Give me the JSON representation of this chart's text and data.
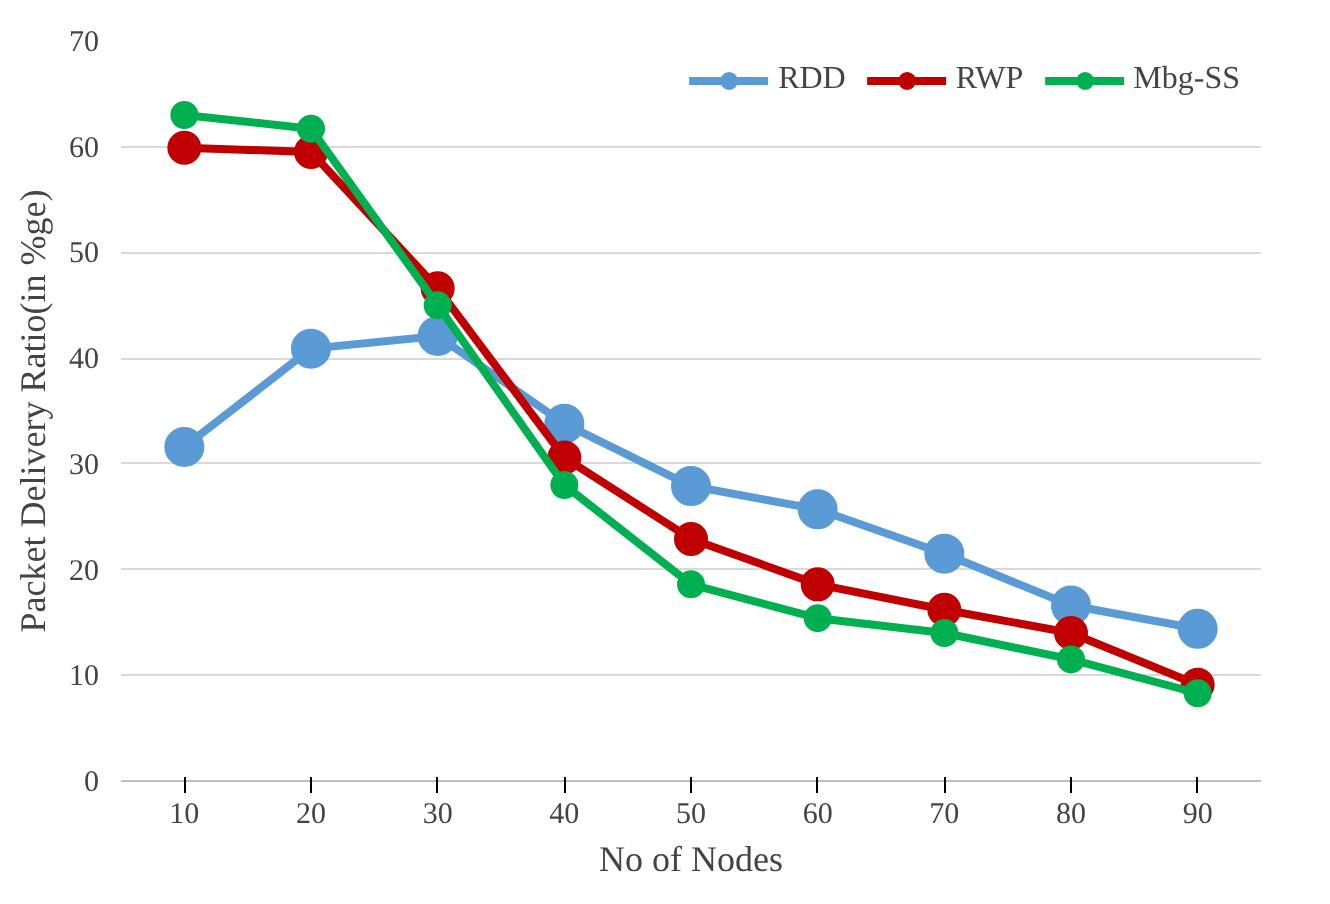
{
  "chart_data": {
    "type": "line",
    "xlabel": "No of Nodes",
    "ylabel": "Packet Delivery Ratio(in %ge)",
    "categories": [
      "10",
      "20",
      "30",
      "40",
      "50",
      "60",
      "70",
      "80",
      "90"
    ],
    "series": [
      {
        "name": "RDD",
        "color": "#5b9bd5",
        "values": [
          31.6,
          40.9,
          42.1,
          33.8,
          27.9,
          25.7,
          21.5,
          16.6,
          14.4
        ]
      },
      {
        "name": "RWP",
        "color": "#c00000",
        "values": [
          59.9,
          59.5,
          46.6,
          30.6,
          22.9,
          18.6,
          16.2,
          14.0,
          9.1
        ]
      },
      {
        "name": "Mbg-SS",
        "color": "#00b050",
        "values": [
          63.0,
          61.7,
          45.0,
          28.0,
          18.6,
          15.4,
          14.0,
          11.5,
          8.3
        ]
      }
    ],
    "ylim": [
      0,
      70
    ],
    "yticks": [
      0,
      10,
      20,
      30,
      40,
      50,
      60,
      70
    ],
    "grid": "y",
    "legend": "top right",
    "marker": "circle",
    "line_style": "solid"
  }
}
